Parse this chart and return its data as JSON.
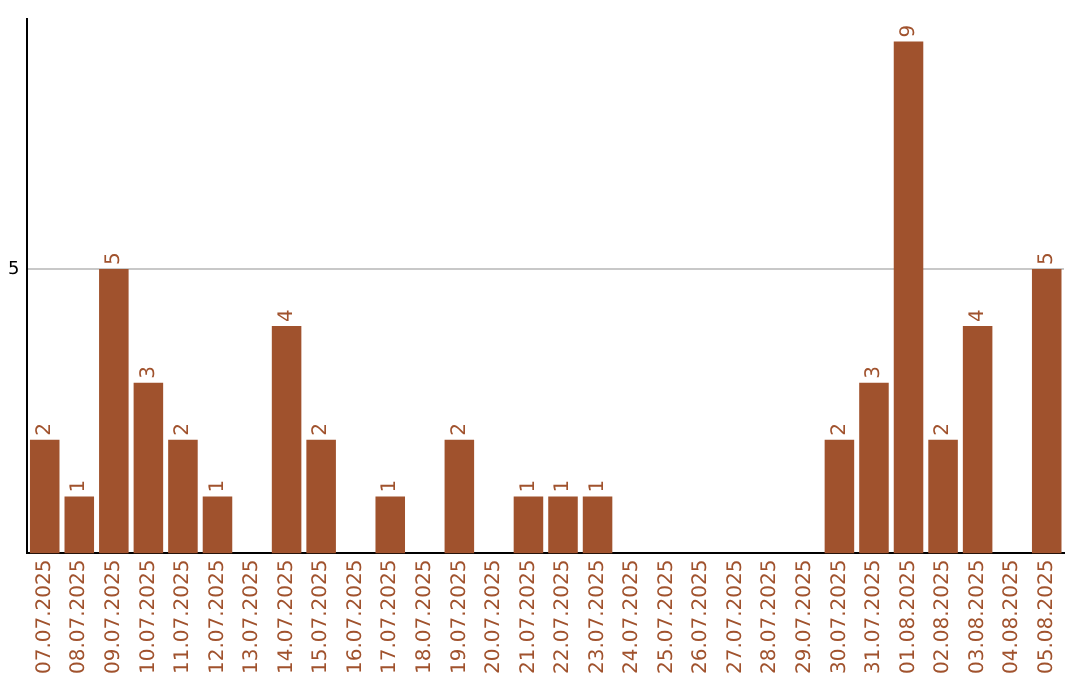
{
  "chart_data": {
    "type": "bar",
    "categories": [
      "07.07.2025",
      "08.07.2025",
      "09.07.2025",
      "10.07.2025",
      "11.07.2025",
      "12.07.2025",
      "13.07.2025",
      "14.07.2025",
      "15.07.2025",
      "16.07.2025",
      "17.07.2025",
      "18.07.2025",
      "19.07.2025",
      "20.07.2025",
      "21.07.2025",
      "22.07.2025",
      "23.07.2025",
      "24.07.2025",
      "25.07.2025",
      "26.07.2025",
      "27.07.2025",
      "28.07.2025",
      "29.07.2025",
      "30.07.2025",
      "31.07.2025",
      "01.08.2025",
      "02.08.2025",
      "03.08.2025",
      "04.08.2025",
      "05.08.2025"
    ],
    "values": [
      2,
      1,
      5,
      3,
      2,
      1,
      0,
      4,
      2,
      0,
      1,
      0,
      2,
      0,
      1,
      1,
      1,
      0,
      0,
      0,
      0,
      0,
      0,
      2,
      3,
      9,
      2,
      4,
      0,
      5
    ],
    "value_labels": [
      "2",
      "1",
      "5",
      "3",
      "2",
      "1",
      null,
      "4",
      "2",
      null,
      "1",
      null,
      "2",
      null,
      "1",
      "1",
      "1",
      null,
      null,
      null,
      null,
      null,
      null,
      "2",
      "3",
      "9",
      "2",
      "4",
      null,
      "5"
    ],
    "color": "#a0522d",
    "ylim": [
      0,
      9.4
    ],
    "yticks": [
      5
    ],
    "grid": "y",
    "legend": false
  }
}
